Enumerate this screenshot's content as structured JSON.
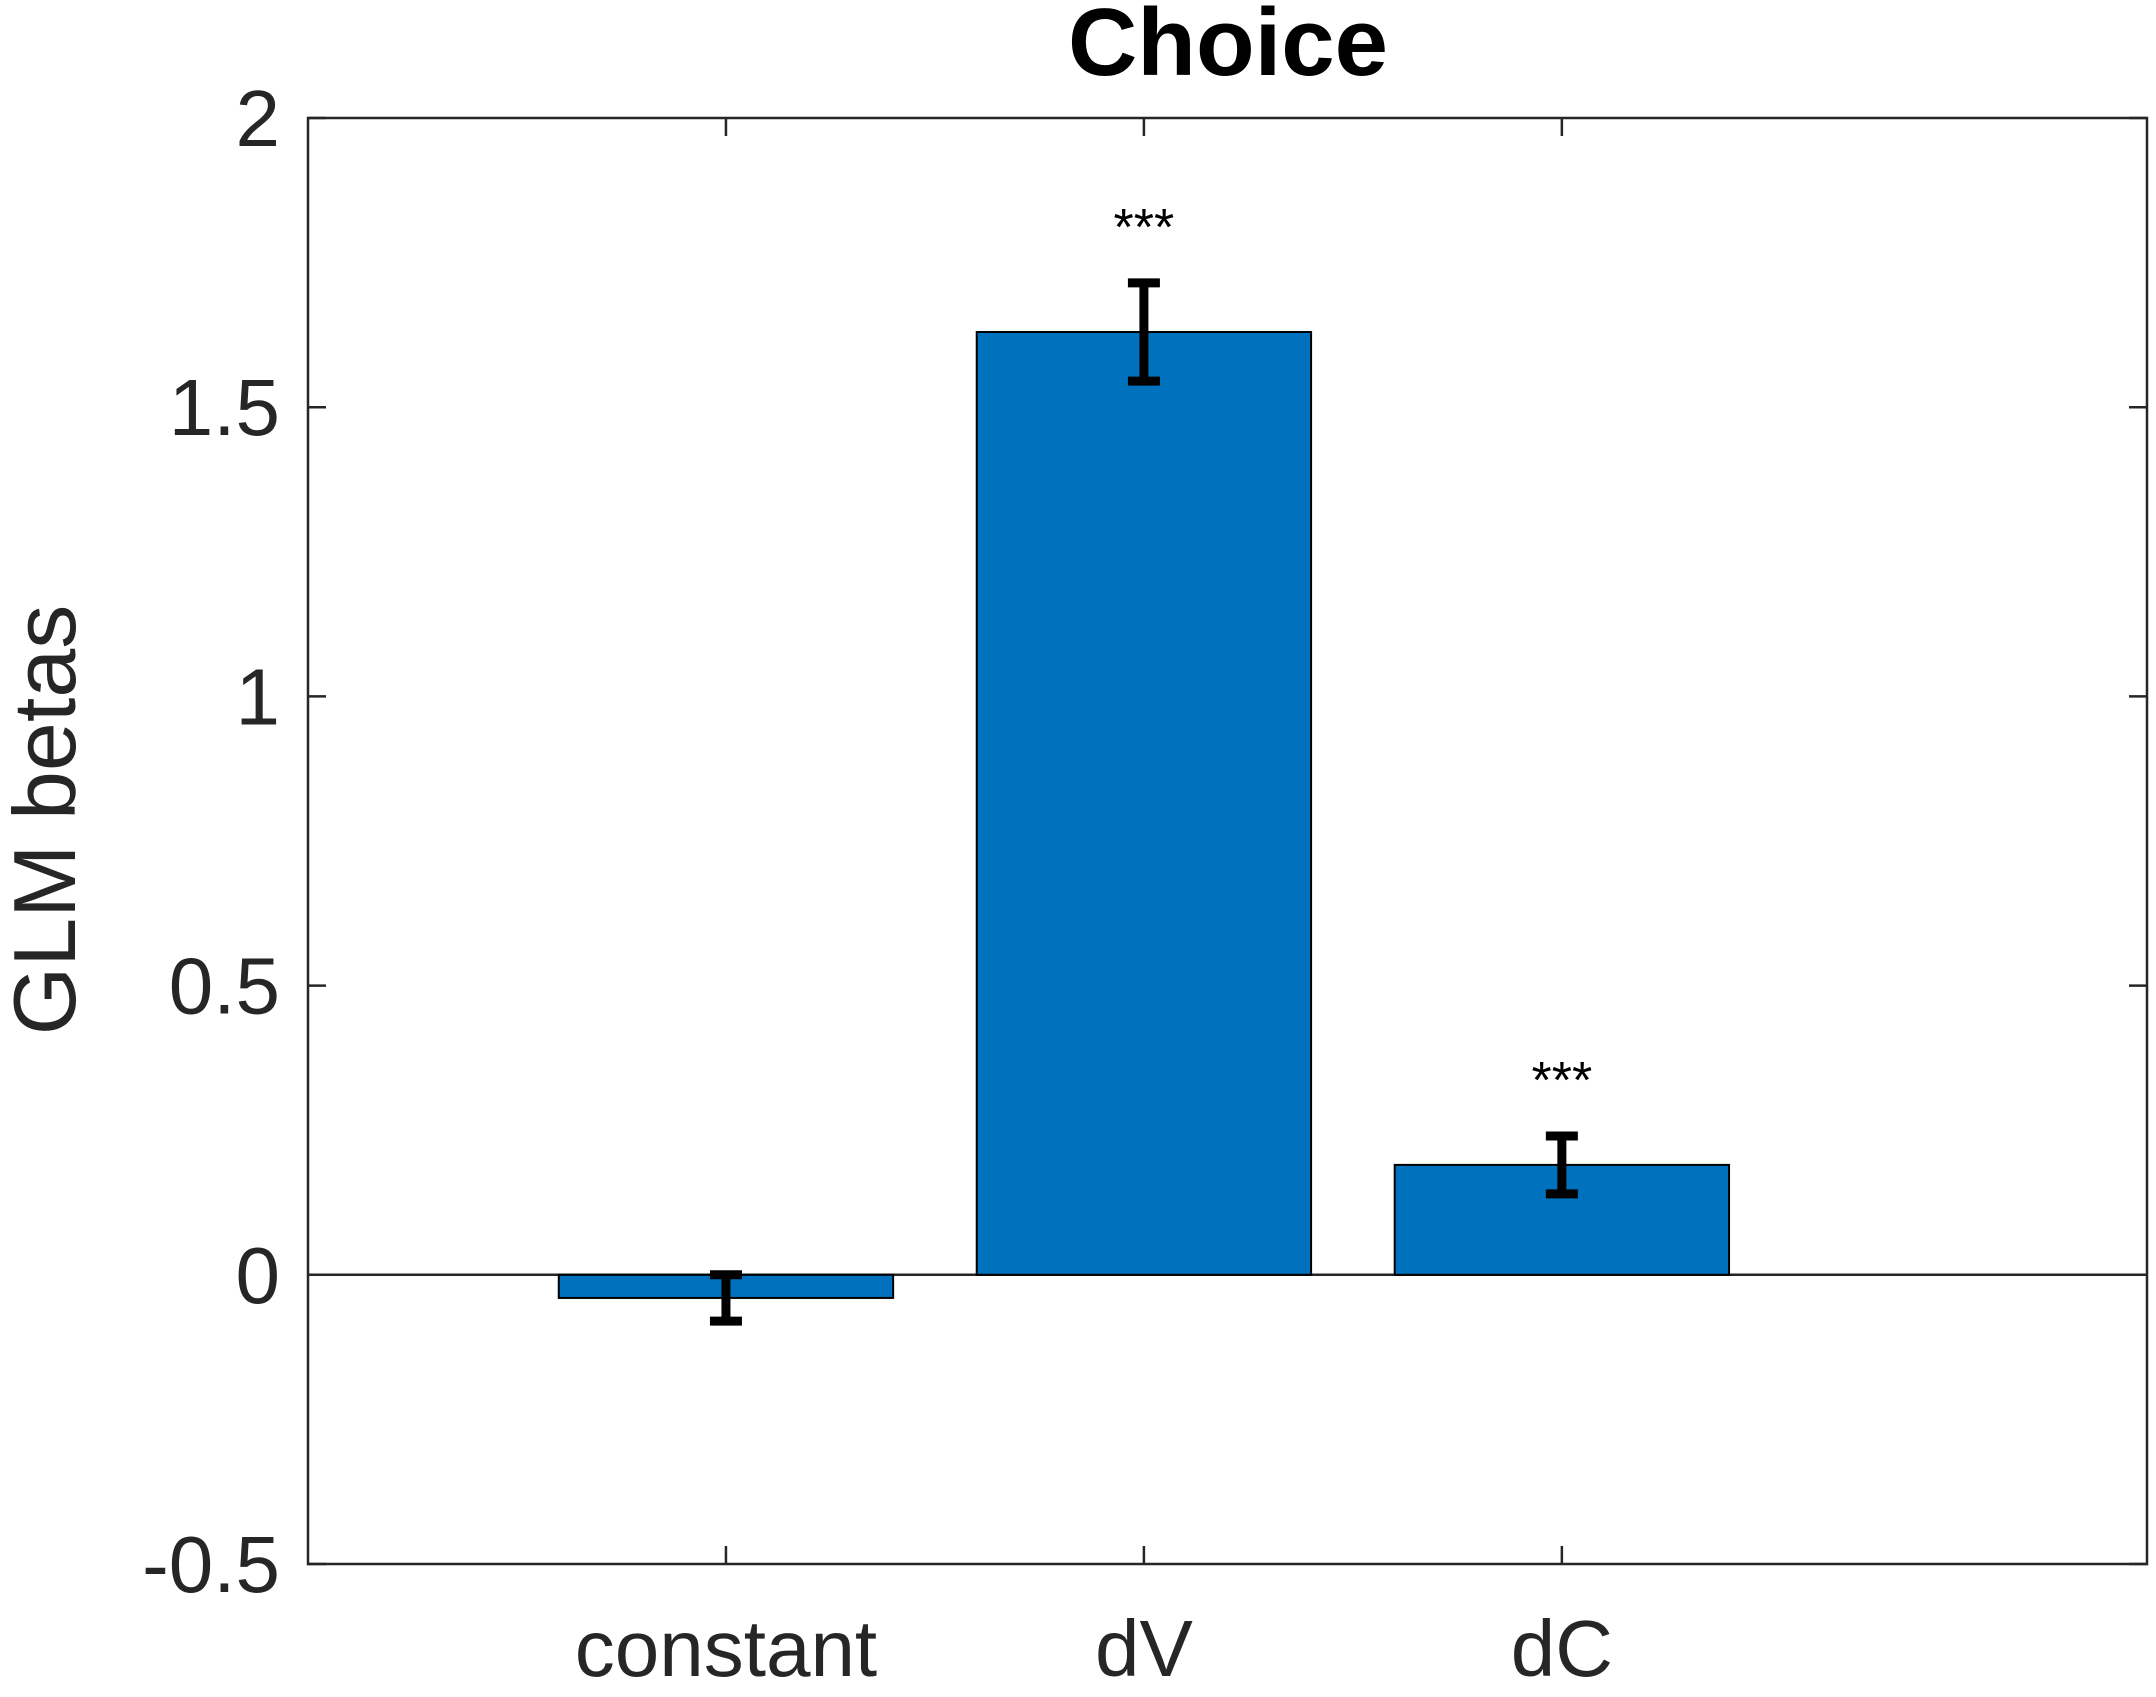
{
  "chart_data": {
    "type": "bar",
    "title": "Choice",
    "xlabel": "",
    "ylabel": "GLM betas",
    "categories": [
      "constant",
      "dV",
      "dC"
    ],
    "values": [
      -0.04,
      1.63,
      0.19
    ],
    "error": [
      0.04,
      0.085,
      0.05
    ],
    "significance": [
      "",
      "***",
      "***"
    ],
    "ylim": [
      -0.5,
      2
    ],
    "xlim": [
      0,
      4.4
    ],
    "yticks": [
      -0.5,
      0,
      0.5,
      1,
      1.5,
      2
    ],
    "ytick_labels": [
      "-0.5",
      "0",
      "0.5",
      "1",
      "1.5",
      "2"
    ],
    "grid": false,
    "bar_color": "#0072BD",
    "edge_color": "#000000",
    "errorbar_color": "#000000",
    "axis_color": "#262626"
  }
}
